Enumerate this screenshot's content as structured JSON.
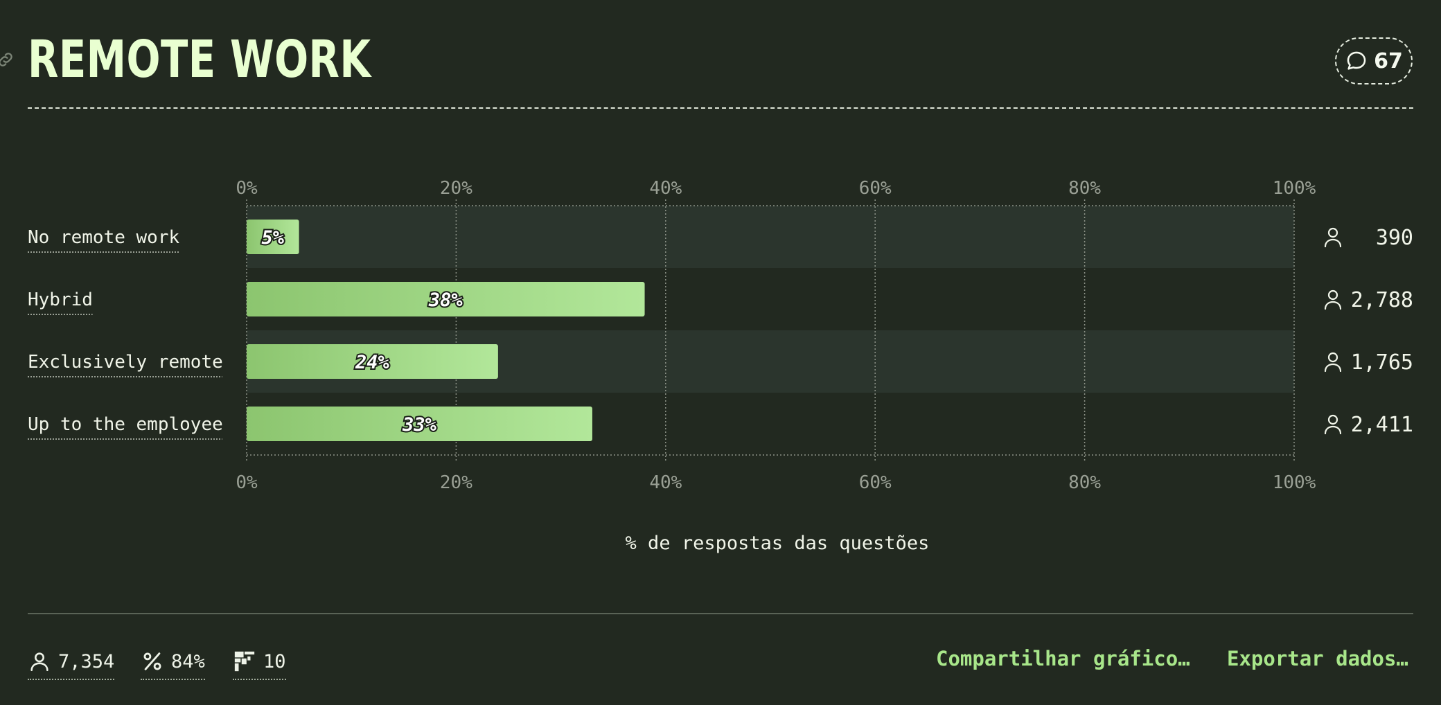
{
  "header": {
    "title": "REMOTE WORK",
    "comment_count": "67"
  },
  "chart_data": {
    "type": "bar",
    "orientation": "horizontal",
    "categories": [
      "No remote work",
      "Hybrid",
      "Exclusively remote",
      "Up to the employee"
    ],
    "values": [
      5,
      38,
      24,
      33
    ],
    "value_labels": [
      "5%",
      "38%",
      "24%",
      "33%"
    ],
    "respondents": [
      "390",
      "2,788",
      "1,765",
      "2,411"
    ],
    "xlim": [
      0,
      100
    ],
    "ticks": [
      0,
      20,
      40,
      60,
      80,
      100
    ],
    "tick_labels": [
      "0%",
      "20%",
      "40%",
      "60%",
      "80%",
      "100%"
    ],
    "xlabel": "% de respostas das questões",
    "grid": true,
    "colors": {
      "bar_start": "#8cc56f",
      "bar_end": "#b2e79a",
      "row_alt": "#2b352d",
      "grid": "#8d9388",
      "tick_text": "#9aa095",
      "label_text": "#f1f5e9"
    }
  },
  "footer": {
    "respondents": "7,354",
    "completion": "84%",
    "questions": "10",
    "share_label": "Compartilhar gráfico…",
    "export_label": "Exportar dados…"
  }
}
